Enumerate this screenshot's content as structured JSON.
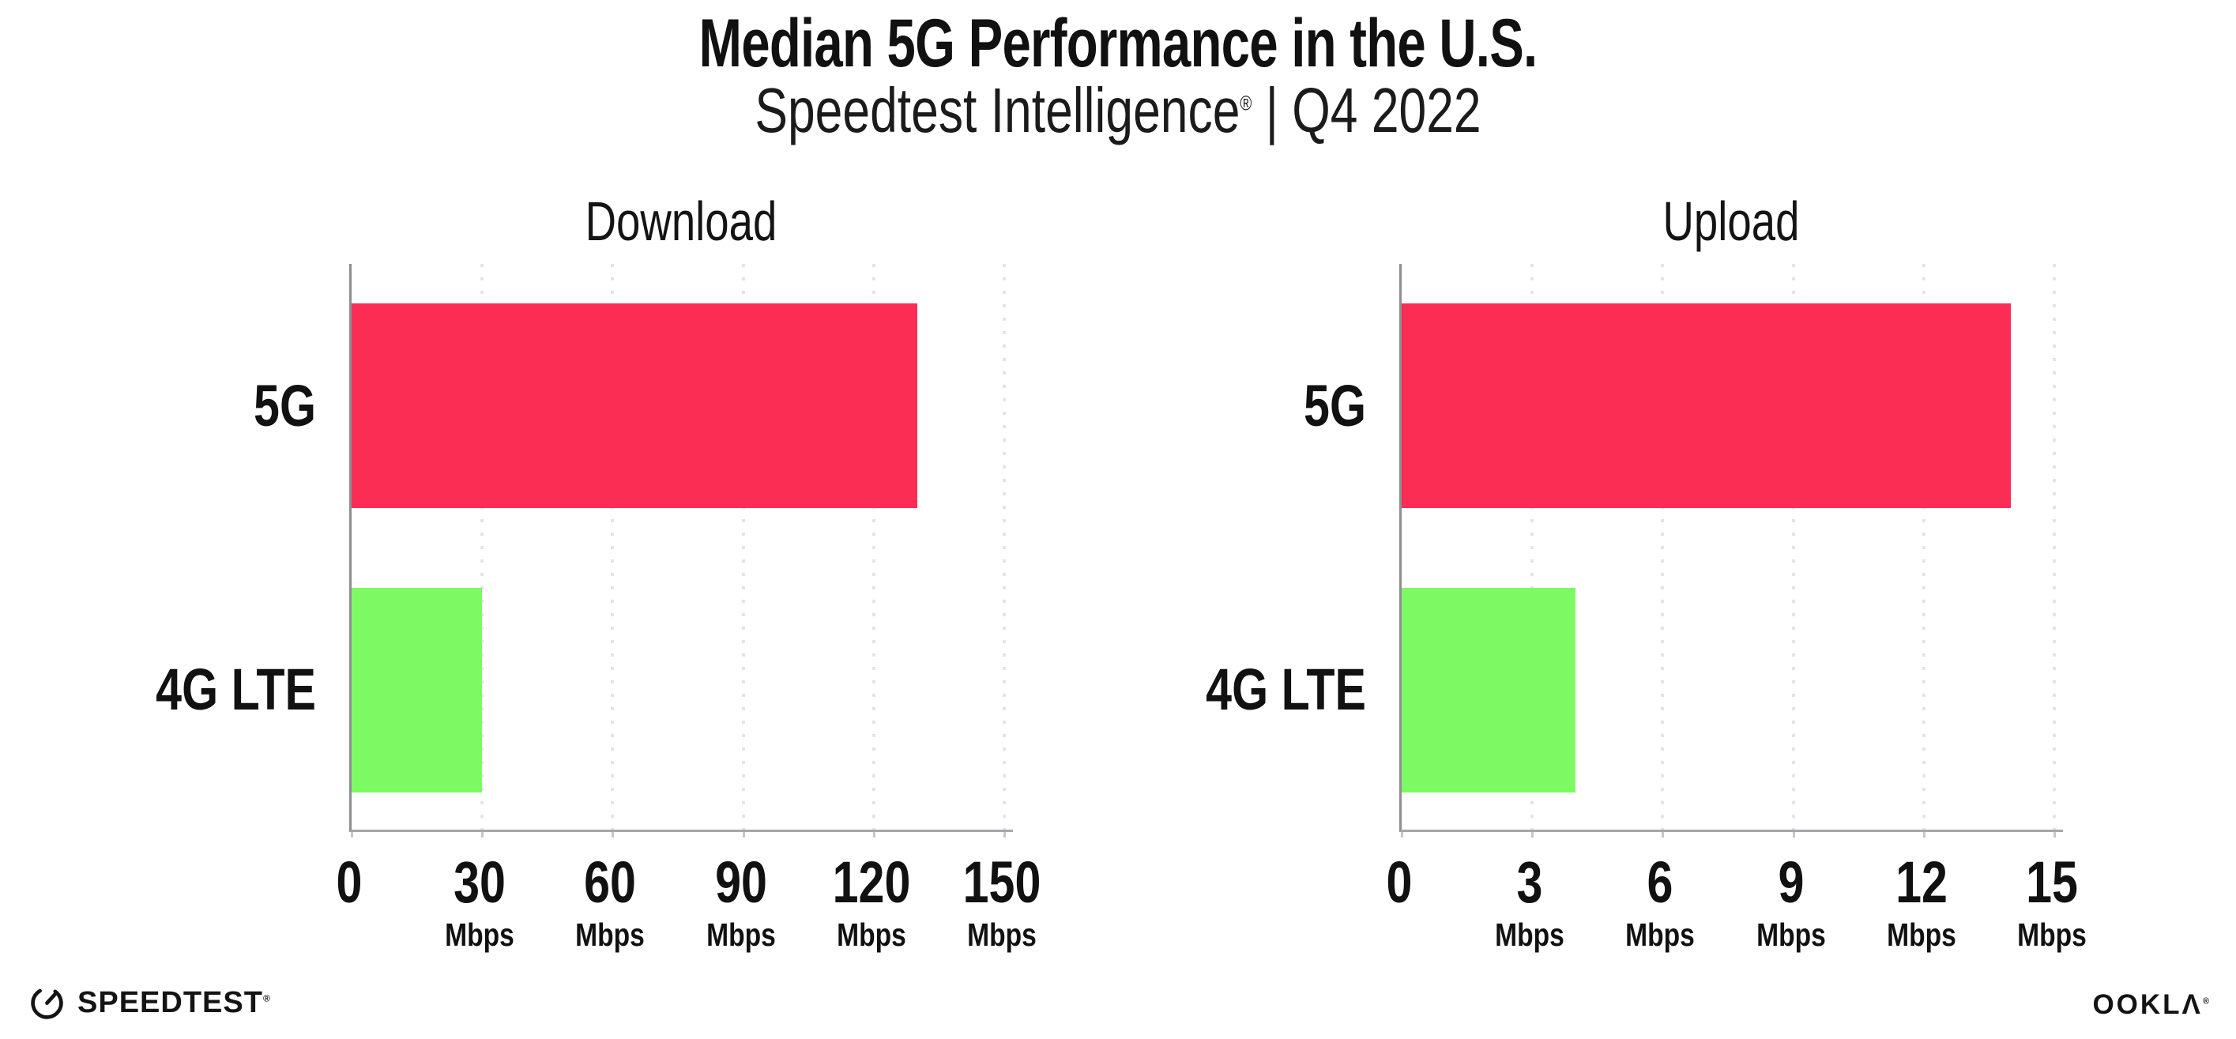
{
  "header": {
    "title": "Median 5G Performance in the U.S.",
    "subtitle_brand": "Speedtest Intelligence",
    "subtitle_reg": "®",
    "subtitle_rest": " | Q4 2022"
  },
  "chart_data": [
    {
      "type": "bar",
      "orientation": "horizontal",
      "title": "Download",
      "categories": [
        "5G",
        "4G LTE"
      ],
      "values": [
        130,
        30
      ],
      "unit": "Mbps",
      "xlim": [
        0,
        150
      ],
      "xticks": [
        0,
        30,
        60,
        90,
        120,
        150
      ],
      "bar_colors": [
        "#FC2D55",
        "#7DF963"
      ],
      "grid": "dotted-vertical",
      "legend": "none"
    },
    {
      "type": "bar",
      "orientation": "horizontal",
      "title": "Upload",
      "categories": [
        "5G",
        "4G LTE"
      ],
      "values": [
        14,
        4
      ],
      "unit": "Mbps",
      "xlim": [
        0,
        15
      ],
      "xticks": [
        0,
        3,
        6,
        9,
        12,
        15
      ],
      "bar_colors": [
        "#FC2D55",
        "#7DF963"
      ],
      "grid": "dotted-vertical",
      "legend": "none"
    }
  ],
  "colors": {
    "bar_5g": "#FC2D55",
    "bar_4g_lte": "#7DF963",
    "gridline": "#E3E2EE",
    "axis_spine": "#8E8E93",
    "text": "#111111"
  },
  "footer": {
    "speedtest_wordmark": "SPEEDTEST",
    "speedtest_reg": "®",
    "ookla_wordmark": "OOKLΛ",
    "ookla_reg": "®"
  }
}
